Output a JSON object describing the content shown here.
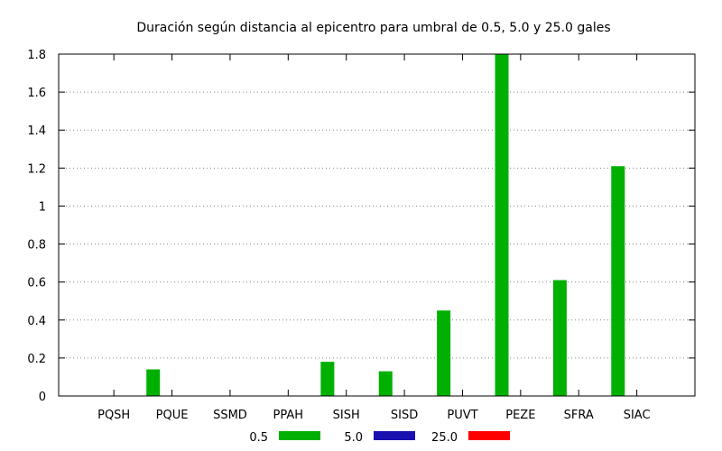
{
  "chart_data": {
    "type": "bar",
    "title": "Duración según distancia al epicentro para umbral de 0.5, 5.0 y 25.0 gales",
    "xlabel": "",
    "ylabel": "",
    "categories": [
      "PQSH",
      "PQUE",
      "SSMD",
      "PPAH",
      "SISH",
      "SISD",
      "PUVT",
      "PEZE",
      "SFRA",
      "SIAC"
    ],
    "ylim": [
      0,
      1.8
    ],
    "yticks": [
      "0",
      "0.2",
      "0.4",
      "0.6",
      "0.8",
      "1",
      "1.2",
      "1.4",
      "1.6",
      "1.8"
    ],
    "grid": "horizontal-dotted",
    "legend_position": "bottom",
    "series": [
      {
        "name": "0.5",
        "color": "#00b000",
        "values": [
          0,
          0.14,
          0,
          0,
          0.18,
          0.13,
          0.45,
          1.8,
          0.61,
          1.21
        ]
      },
      {
        "name": "5.0",
        "color": "#1a0faf",
        "values": [
          0,
          0,
          0,
          0,
          0,
          0,
          0,
          0,
          0,
          0
        ]
      },
      {
        "name": "25.0",
        "color": "#ff0000",
        "values": [
          0,
          0,
          0,
          0,
          0,
          0,
          0,
          0,
          0,
          0
        ]
      }
    ]
  }
}
